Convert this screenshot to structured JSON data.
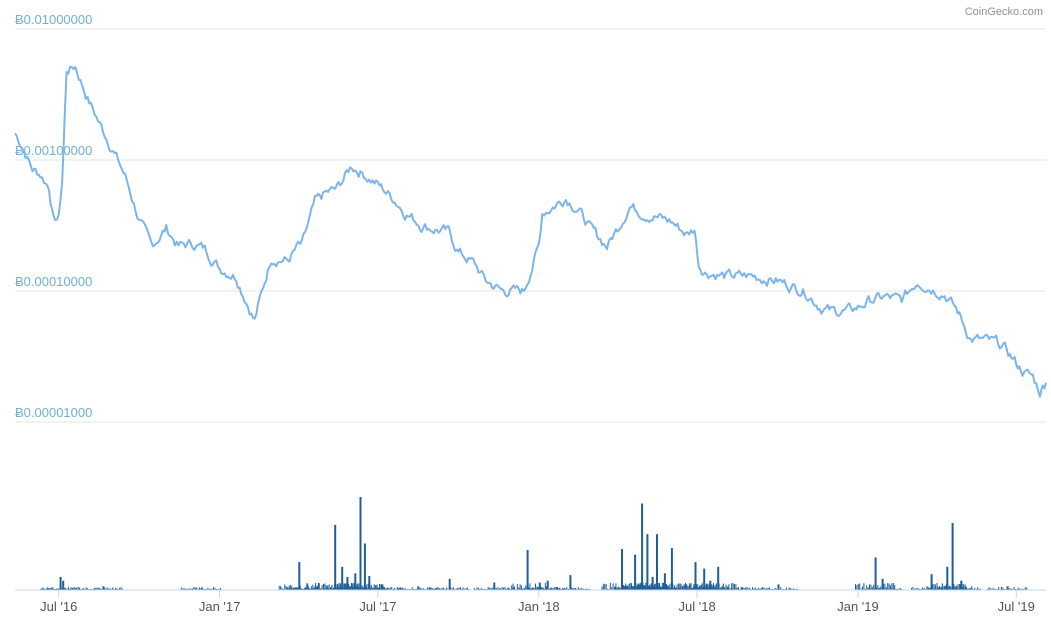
{
  "credit": "CoinGecko.com",
  "colors": {
    "price_line": "#7cb5ec",
    "volume_bar": "#1f5f99",
    "grid": "#e6e6e6",
    "y_label": "#6fb1dc",
    "x_label": "#555555"
  },
  "chart_data": {
    "type": "line",
    "title": "",
    "xlabel": "",
    "ylabel": "",
    "y_scale": "log",
    "grid": true,
    "x_range": [
      "2016-05-12",
      "2019-08-04"
    ],
    "ylim": [
      1e-05,
      0.01
    ],
    "y_ticks": [
      {
        "value": 0.01,
        "label": "Ƀ0.01000000"
      },
      {
        "value": 0.001,
        "label": "Ƀ0.00100000"
      },
      {
        "value": 0.0001,
        "label": "Ƀ0.00010000"
      },
      {
        "value": 1e-05,
        "label": "Ƀ0.00001000"
      }
    ],
    "x_ticks": [
      {
        "date": "2016-07-01",
        "label": "Jul '16"
      },
      {
        "date": "2017-01-01",
        "label": "Jan '17"
      },
      {
        "date": "2017-07-01",
        "label": "Jul '17"
      },
      {
        "date": "2018-01-01",
        "label": "Jan '18"
      },
      {
        "date": "2018-07-01",
        "label": "Jul '18"
      },
      {
        "date": "2019-01-01",
        "label": "Jan '19"
      },
      {
        "date": "2019-07-01",
        "label": "Jul '19"
      }
    ],
    "series": [
      {
        "x": [
          "2016-05-12",
          "2016-05-20",
          "2016-06-01",
          "2016-06-10",
          "2016-06-20",
          "2016-06-25",
          "2016-07-01",
          "2016-07-05",
          "2016-07-10",
          "2016-07-20",
          "2016-08-01",
          "2016-08-15",
          "2016-09-01",
          "2016-09-15",
          "2016-10-01",
          "2016-10-15",
          "2016-11-01",
          "2016-11-15",
          "2016-12-01",
          "2016-12-15",
          "2017-01-01",
          "2017-01-20",
          "2017-02-10",
          "2017-03-01",
          "2017-03-20",
          "2017-04-01",
          "2017-04-05",
          "2017-04-20",
          "2017-05-01",
          "2017-05-15",
          "2017-06-01",
          "2017-06-15",
          "2017-07-01",
          "2017-07-20",
          "2017-08-01",
          "2017-08-20",
          "2017-09-01",
          "2017-09-20",
          "2017-10-01",
          "2017-10-20",
          "2017-11-01",
          "2017-11-20",
          "2017-12-01",
          "2017-12-15",
          "2018-01-01",
          "2018-01-05",
          "2018-01-15",
          "2018-02-01",
          "2018-02-15",
          "2018-03-01",
          "2018-03-20",
          "2018-04-01",
          "2018-04-15",
          "2018-05-01",
          "2018-05-15",
          "2018-06-01",
          "2018-06-20",
          "2018-06-28",
          "2018-07-03",
          "2018-07-10",
          "2018-08-01",
          "2018-08-20",
          "2018-09-01",
          "2018-10-01",
          "2018-11-01",
          "2018-11-20",
          "2018-12-01",
          "2018-12-20",
          "2019-01-01",
          "2019-01-15",
          "2019-02-01",
          "2019-02-20",
          "2019-03-10",
          "2019-03-20",
          "2019-04-10",
          "2019-04-25",
          "2019-05-10",
          "2019-05-25",
          "2019-06-10",
          "2019-06-20",
          "2019-07-01",
          "2019-07-10",
          "2019-07-20",
          "2019-07-28",
          "2019-08-04"
        ],
        "values": [
          0.0016,
          0.0013,
          0.00085,
          0.00078,
          0.00062,
          0.00035,
          0.00036,
          0.0007,
          0.0048,
          0.0052,
          0.0032,
          0.002,
          0.0012,
          0.00075,
          0.00035,
          0.00022,
          0.0003,
          0.00022,
          0.00023,
          0.00021,
          0.00015,
          0.00013,
          6e-05,
          0.00018,
          0.00017,
          0.00022,
          0.00022,
          0.00047,
          0.00055,
          0.0006,
          0.0009,
          0.00078,
          0.00065,
          0.0005,
          0.0004,
          0.00032,
          0.0003,
          0.00028,
          0.0002,
          0.00016,
          0.00012,
          0.0001,
          0.0001,
          0.0001,
          0.00022,
          0.0004,
          0.00043,
          0.00052,
          0.00042,
          0.0003,
          0.00022,
          0.0003,
          0.00045,
          0.00039,
          0.00037,
          0.00034,
          0.00027,
          0.0003,
          0.00016,
          0.00014,
          0.00013,
          0.00013,
          0.00013,
          0.00012,
          0.0001,
          7.5e-05,
          7e-05,
          7e-05,
          7.5e-05,
          8.5e-05,
          9e-05,
          8.5e-05,
          0.00012,
          0.00011,
          9.5e-05,
          7e-05,
          4.3e-05,
          4.2e-05,
          4e-05,
          3.5e-05,
          2.8e-05,
          2.4e-05,
          2.2e-05,
          1.7e-05,
          2e-05
        ]
      }
    ],
    "volume": {
      "x": [
        "2016-07-02",
        "2016-07-05",
        "2016-08-20",
        "2016-12-10",
        "2017-04-01",
        "2017-04-10",
        "2017-05-12",
        "2017-05-20",
        "2017-05-26",
        "2017-06-04",
        "2017-06-10",
        "2017-06-15",
        "2017-06-20",
        "2017-07-05",
        "2017-08-15",
        "2017-09-20",
        "2017-11-10",
        "2017-12-18",
        "2018-01-01",
        "2018-01-10",
        "2018-02-05",
        "2018-04-05",
        "2018-04-20",
        "2018-04-28",
        "2018-05-04",
        "2018-05-10",
        "2018-05-15",
        "2018-05-24",
        "2018-06-01",
        "2018-06-28",
        "2018-07-08",
        "2018-07-15",
        "2018-07-24",
        "2018-08-20",
        "2018-10-01",
        "2019-01-20",
        "2019-01-28",
        "2019-03-25",
        "2019-04-12",
        "2019-04-18",
        "2019-04-28",
        "2019-06-20"
      ],
      "values": [
        0.14,
        0.1,
        0.04,
        0.02,
        0.3,
        0.06,
        0.7,
        0.25,
        0.14,
        0.18,
        1.0,
        0.5,
        0.15,
        0.06,
        0.04,
        0.12,
        0.08,
        0.43,
        0.08,
        0.1,
        0.16,
        0.44,
        0.38,
        0.93,
        0.6,
        0.14,
        0.6,
        0.18,
        0.45,
        0.3,
        0.23,
        0.1,
        0.25,
        0.03,
        0.06,
        0.35,
        0.12,
        0.17,
        0.25,
        0.72,
        0.1,
        0.04
      ]
    }
  }
}
